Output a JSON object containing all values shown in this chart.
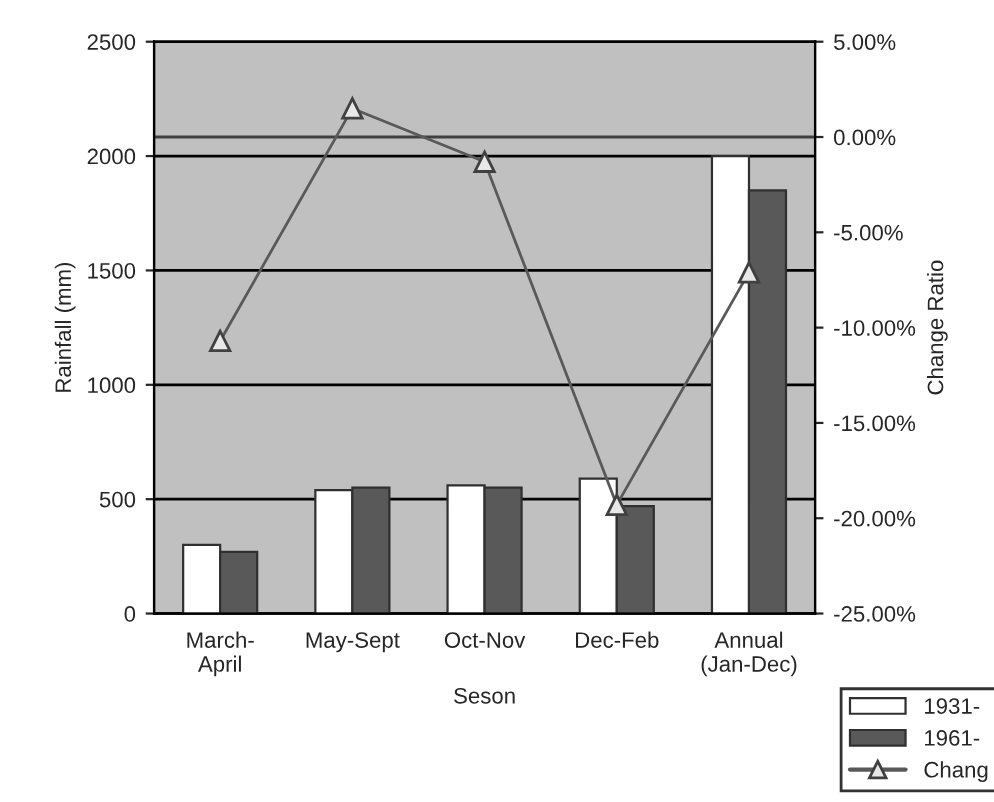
{
  "chart_data": {
    "type": "bar",
    "xlabel": "Seson",
    "ylabel": "Rainfall (mm)",
    "y2label": "Change Ratio",
    "categories": [
      "March-\nApril",
      "May-Sept",
      "Oct-Nov",
      "Dec-Feb",
      "Annual\n(Jan-Dec)"
    ],
    "series": [
      {
        "name": "1931-",
        "color": "#ffffff",
        "values": [
          300,
          540,
          560,
          590,
          2000
        ]
      },
      {
        "name": "1961-",
        "color": "#595959",
        "values": [
          270,
          550,
          550,
          470,
          1850
        ]
      },
      {
        "name": "Chang",
        "type": "line",
        "axis": "y2",
        "color": "#595959",
        "marker": "triangle",
        "values": [
          -10.7,
          1.5,
          -1.3,
          -19.3,
          -7.1
        ]
      }
    ],
    "ylim": [
      0,
      2500
    ],
    "yticks": [
      0,
      500,
      1000,
      1500,
      2000,
      2500
    ],
    "y2lim": [
      -25,
      5
    ],
    "y2ticks": [
      {
        "value": -25,
        "label": "-25.00%"
      },
      {
        "value": -20,
        "label": "-20.00%"
      },
      {
        "value": -15,
        "label": "-15.00%"
      },
      {
        "value": -10,
        "label": "-10.00%"
      },
      {
        "value": -5,
        "label": "-5.00%"
      },
      {
        "value": 0,
        "label": "0.00%"
      },
      {
        "value": 5,
        "label": "5.00%"
      }
    ],
    "ref_lines": [
      {
        "axis": "y2",
        "value": 0,
        "color": "#404040"
      }
    ],
    "grid": "y",
    "legend": "bottom right"
  }
}
